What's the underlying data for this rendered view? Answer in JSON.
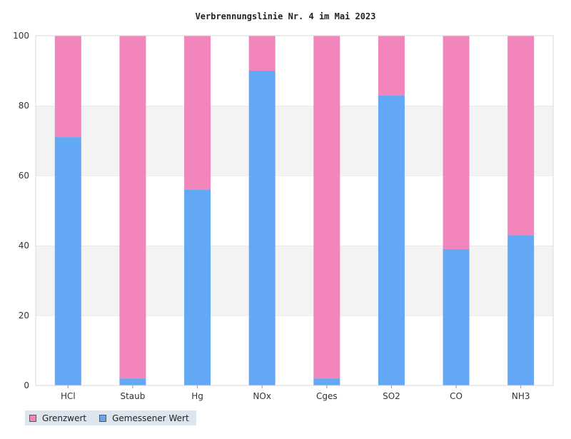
{
  "chart_data": {
    "type": "bar",
    "stacked": true,
    "title": "Verbrennungslinie Nr. 4 im Mai 2023",
    "categories": [
      "HCl",
      "Staub",
      "Hg",
      "NOx",
      "Cges",
      "SO2",
      "CO",
      "NH3"
    ],
    "series": [
      {
        "name": "Gemessener Wert",
        "color": "#63a8f4",
        "values": [
          71,
          2,
          56,
          90,
          2,
          83,
          39,
          43
        ]
      },
      {
        "name": "Grenzwert",
        "color": "#f285bc",
        "values": [
          29,
          98,
          44,
          10,
          98,
          17,
          61,
          57
        ]
      }
    ],
    "ylim": [
      0,
      100
    ],
    "yticks": [
      "0",
      "20",
      "40",
      "60",
      "80",
      "100"
    ],
    "legend": {
      "position": "bottom-left",
      "items": [
        {
          "label": "Grenzwert",
          "color": "#f285bc"
        },
        {
          "label": "Gemessener Wert",
          "color": "#63a8f4"
        }
      ]
    }
  }
}
